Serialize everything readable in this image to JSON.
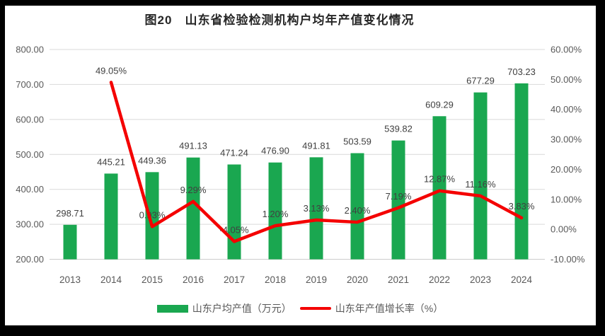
{
  "page": {
    "background": "#000000",
    "panel_background": "#FFFFFF"
  },
  "colors": {
    "grid": "#D9D9D9",
    "grid_baseline": "#C9C9C9",
    "axis_text": "#595959",
    "data_label": "#404040",
    "title_text": "#262626",
    "bar": "#1AA750",
    "line": "#F40000"
  },
  "chart_data": {
    "type": "bar+line",
    "title": "图20　山东省检验检测机构户均年产值变化情况",
    "categories": [
      "2013",
      "2014",
      "2015",
      "2016",
      "2017",
      "2018",
      "2019",
      "2020",
      "2021",
      "2022",
      "2023",
      "2024"
    ],
    "series": [
      {
        "name": "山东户均产值（万元）",
        "type": "bar",
        "axis": "left",
        "color": "#1AA750",
        "values": [
          298.71,
          445.21,
          449.36,
          491.13,
          471.24,
          476.9,
          491.81,
          503.59,
          539.82,
          609.29,
          677.29,
          703.23
        ],
        "labels": [
          "298.71",
          "445.21",
          "449.36",
          "491.13",
          "471.24",
          "476.90",
          "491.81",
          "503.59",
          "539.82",
          "609.29",
          "677.29",
          "703.23"
        ]
      },
      {
        "name": "山东年产值增长率（%）",
        "type": "line",
        "axis": "right",
        "color": "#F40000",
        "values": [
          null,
          49.05,
          0.93,
          9.29,
          -4.05,
          1.2,
          3.13,
          2.4,
          7.19,
          12.87,
          11.16,
          3.83
        ],
        "labels": [
          "",
          "49.05%",
          "0.93%",
          "9.29%",
          "-4.05%",
          "1.20%",
          "3.13%",
          "2.40%",
          "7.19%",
          "12.87%",
          "11.16%",
          "3.83%"
        ]
      }
    ],
    "axes": {
      "left": {
        "min": 200,
        "max": 800,
        "tick_values": [
          800,
          700,
          600,
          500,
          400,
          300,
          200
        ],
        "tick_labels": [
          "800.00",
          "700.00",
          "600.00",
          "500.00",
          "400.00",
          "300.00",
          "200.00"
        ]
      },
      "right": {
        "min": -10,
        "max": 60,
        "tick_values": [
          60,
          50,
          40,
          30,
          20,
          10,
          0,
          -10
        ],
        "tick_labels": [
          "60.00%",
          "50.00%",
          "40.00%",
          "30.00%",
          "20.00%",
          "10.00%",
          "0.00%",
          "-10.00%"
        ]
      }
    },
    "grid": true,
    "legend_position": "bottom",
    "legend": [
      {
        "label": "山东户均产值（万元）",
        "color": "#1AA750",
        "shape": "rect"
      },
      {
        "label": "山东年产值增长率（%）",
        "color": "#F40000",
        "shape": "line"
      }
    ]
  }
}
